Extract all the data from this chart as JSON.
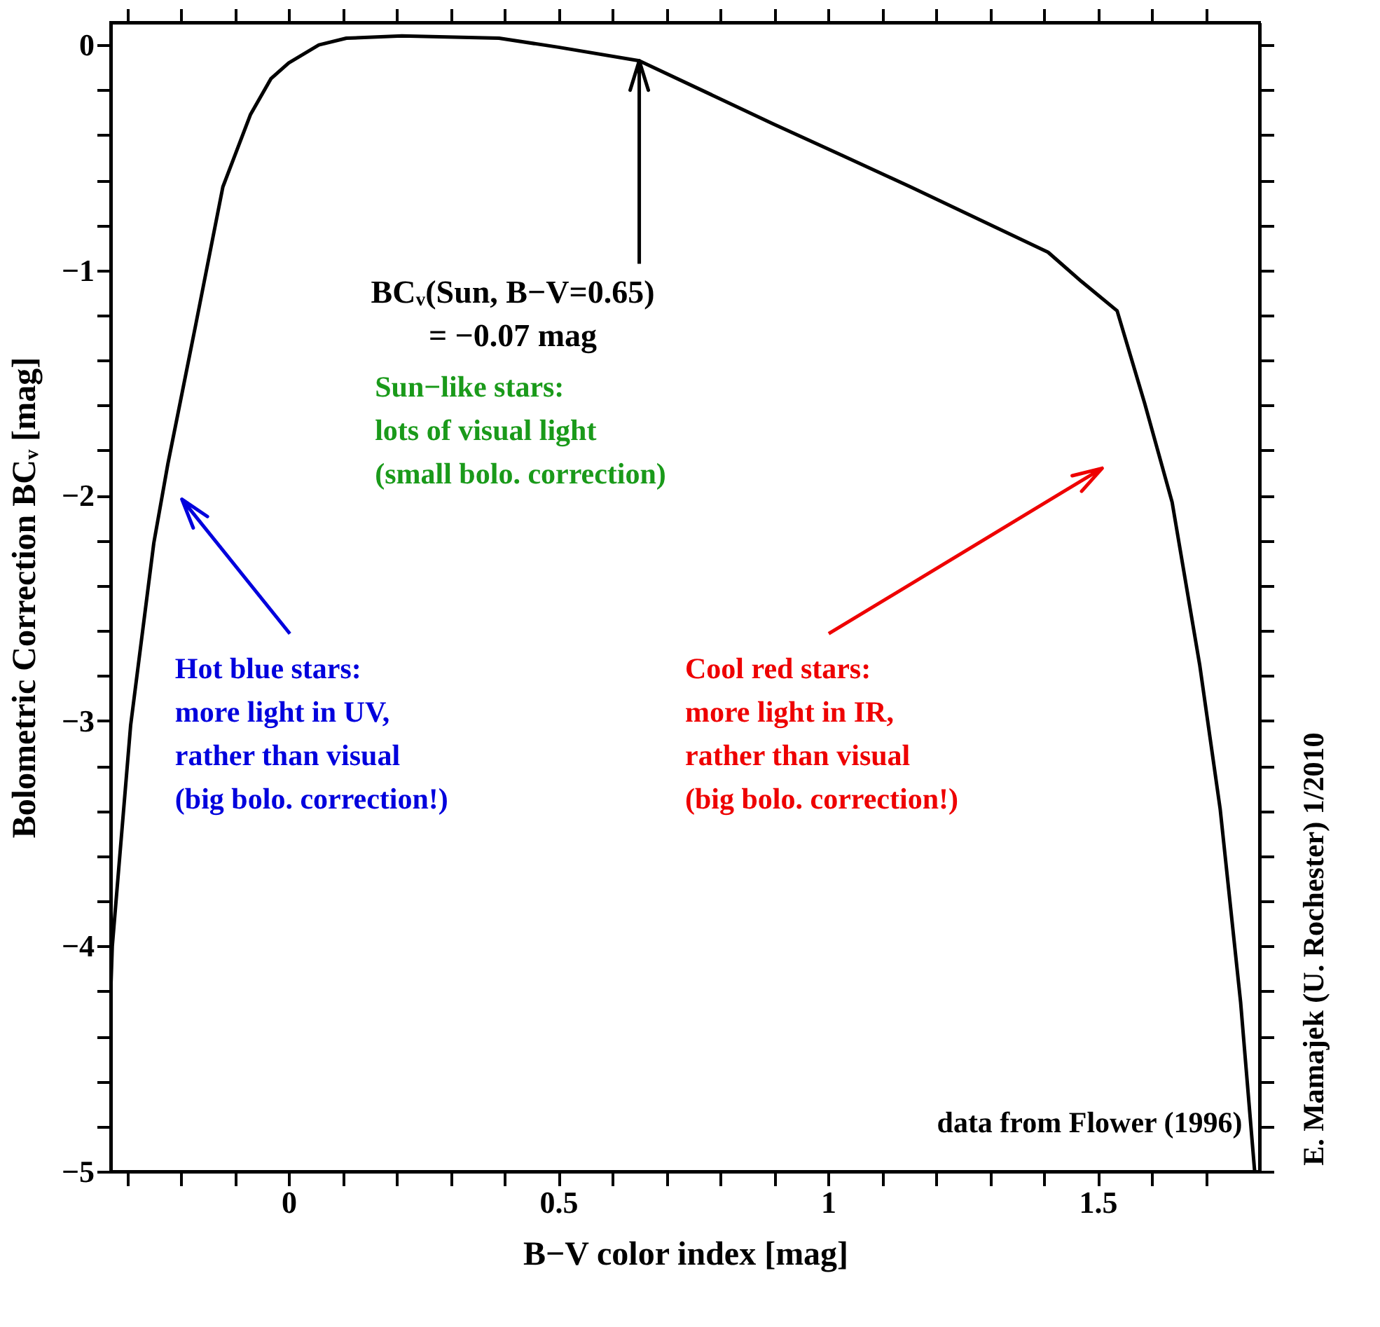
{
  "chart_data": {
    "type": "line",
    "xlabel": "B−V color index [mag]",
    "ylabel": "Bolometric Correction BCᵥ [mag]",
    "x": [
      -0.33,
      -0.327,
      -0.293,
      -0.25,
      -0.224,
      -0.173,
      -0.122,
      -0.071,
      -0.033,
      0,
      0.056,
      0.107,
      0.21,
      0.39,
      0.5,
      0.65,
      0.898,
      1.026,
      1.153,
      1.408,
      1.47,
      1.536,
      1.587,
      1.638,
      1.689,
      1.727,
      1.765,
      1.791
    ],
    "series": [
      {
        "color": "#000000",
        "values": [
          -4.21,
          -4.0,
          -3.02,
          -2.21,
          -1.86,
          -1.25,
          -0.63,
          -0.31,
          -0.15,
          -0.08,
          0.0,
          0.03,
          0.04,
          0.03,
          -0.01,
          -0.07,
          -0.35,
          -0.49,
          -0.63,
          -0.92,
          -1.05,
          -1.18,
          -1.59,
          -2.03,
          -2.75,
          -3.39,
          -4.25,
          -5.0
        ]
      }
    ],
    "xlim": [
      -0.33,
      1.8
    ],
    "ylim": [
      -5,
      0.1
    ],
    "xticks": [
      {
        "value": -0.3,
        "label": null
      },
      {
        "value": -0.2,
        "label": null
      },
      {
        "value": -0.1,
        "label": null
      },
      0,
      {
        "value": 0.1,
        "label": null
      },
      {
        "value": 0.2,
        "label": null
      },
      {
        "value": 0.3,
        "label": null
      },
      {
        "value": 0.4,
        "label": null
      },
      0.5,
      {
        "value": 0.6,
        "label": null
      },
      {
        "value": 0.7,
        "label": null
      },
      {
        "value": 0.8,
        "label": null
      },
      {
        "value": 0.9,
        "label": null
      },
      1,
      {
        "value": 1.1,
        "label": null
      },
      {
        "value": 1.2,
        "label": null
      },
      {
        "value": 1.3,
        "label": null
      },
      {
        "value": 1.4,
        "label": null
      },
      1.5,
      {
        "value": 1.6,
        "label": null
      },
      {
        "value": 1.7,
        "label": null
      }
    ],
    "yticks": [
      {
        "value": -5,
        "label": "−5"
      },
      {
        "value": -4.8,
        "label": null
      },
      {
        "value": -4.6,
        "label": null
      },
      {
        "value": -4.4,
        "label": null
      },
      {
        "value": -4.2,
        "label": null
      },
      {
        "value": -4,
        "label": "−4"
      },
      {
        "value": -3.8,
        "label": null
      },
      {
        "value": -3.6,
        "label": null
      },
      {
        "value": -3.4,
        "label": null
      },
      {
        "value": -3.2,
        "label": null
      },
      {
        "value": -3,
        "label": "−3"
      },
      {
        "value": -2.8,
        "label": null
      },
      {
        "value": -2.6,
        "label": null
      },
      {
        "value": -2.4,
        "label": null
      },
      {
        "value": -2.2,
        "label": null
      },
      {
        "value": -2,
        "label": "−2"
      },
      {
        "value": -1.8,
        "label": null
      },
      {
        "value": -1.6,
        "label": null
      },
      {
        "value": -1.4,
        "label": null
      },
      {
        "value": -1.2,
        "label": null
      },
      {
        "value": -1,
        "label": "−1"
      },
      {
        "value": -0.8,
        "label": null
      },
      {
        "value": -0.6,
        "label": null
      },
      {
        "value": -0.4,
        "label": null
      },
      {
        "value": -0.2,
        "label": null
      },
      0
    ],
    "grid": false,
    "marker": "none",
    "line_style": "solid",
    "annotations": [
      {
        "text": "BCᵥ(Sun, B−V=0.65)\n= −0.07 mag",
        "x": 0.65,
        "y": -0.07
      },
      "Sun−like stars:\nlots of visual light\n(small bolo. correction)",
      "Hot blue stars:\nmore light in UV,\nrather than visual\n(big bolo. correction!)",
      "Cool red stars:\nmore light in IR,\nrather than visual\n(big bolo. correction!)",
      "data from Flower (1996)",
      "E. Mamajek (U. Rochester) 1/2010"
    ]
  }
}
